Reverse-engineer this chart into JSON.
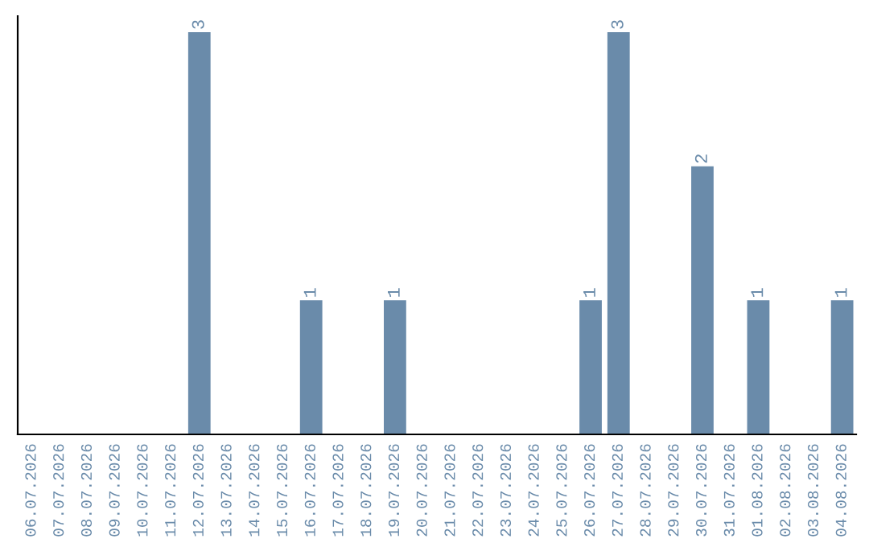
{
  "chart_data": {
    "type": "bar",
    "categories": [
      "06.07.2026",
      "07.07.2026",
      "08.07.2026",
      "09.07.2026",
      "10.07.2026",
      "11.07.2026",
      "12.07.2026",
      "13.07.2026",
      "14.07.2026",
      "15.07.2026",
      "16.07.2026",
      "17.07.2026",
      "18.07.2026",
      "19.07.2026",
      "20.07.2026",
      "21.07.2026",
      "22.07.2026",
      "23.07.2026",
      "24.07.2026",
      "25.07.2026",
      "26.07.2026",
      "27.07.2026",
      "28.07.2026",
      "29.07.2026",
      "30.07.2026",
      "31.07.2026",
      "01.08.2026",
      "02.08.2026",
      "03.08.2026",
      "04.08.2026"
    ],
    "values": [
      0,
      0,
      0,
      0,
      0,
      0,
      3,
      0,
      0,
      0,
      1,
      0,
      0,
      1,
      0,
      0,
      0,
      0,
      0,
      0,
      1,
      3,
      0,
      0,
      2,
      0,
      1,
      0,
      0,
      1
    ],
    "value_labels": [
      null,
      null,
      null,
      null,
      null,
      null,
      "3",
      null,
      null,
      null,
      "1",
      null,
      null,
      "1",
      null,
      null,
      null,
      null,
      null,
      null,
      "1",
      "3",
      null,
      null,
      "2",
      null,
      "1",
      null,
      null,
      "1"
    ],
    "color": "#6a8baa",
    "tick_labels": "x",
    "grid": false,
    "legend": false
  }
}
